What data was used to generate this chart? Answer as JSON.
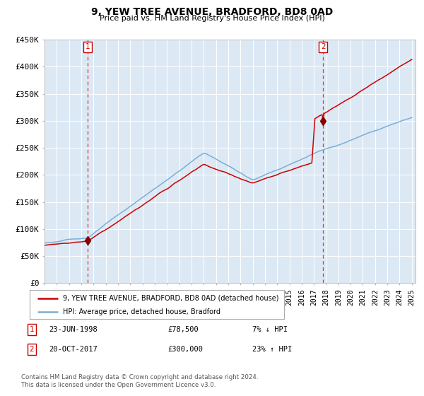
{
  "title": "9, YEW TREE AVENUE, BRADFORD, BD8 0AD",
  "subtitle": "Price paid vs. HM Land Registry's House Price Index (HPI)",
  "bg_color": "#dce9f5",
  "fig_bg_color": "#ffffff",
  "red_line_label": "9, YEW TREE AVENUE, BRADFORD, BD8 0AD (detached house)",
  "blue_line_label": "HPI: Average price, detached house, Bradford",
  "sale1_date": "23-JUN-1998",
  "sale1_price": 78500,
  "sale1_hpi": "7% ↓ HPI",
  "sale2_date": "20-OCT-2017",
  "sale2_price": 300000,
  "sale2_hpi": "23% ↑ HPI",
  "ytick_labels": [
    "£0",
    "£50K",
    "£100K",
    "£150K",
    "£200K",
    "£250K",
    "£300K",
    "£350K",
    "£400K",
    "£450K"
  ],
  "yticks": [
    0,
    50000,
    100000,
    150000,
    200000,
    250000,
    300000,
    350000,
    400000,
    450000
  ],
  "footer": "Contains HM Land Registry data © Crown copyright and database right 2024.\nThis data is licensed under the Open Government Licence v3.0.",
  "sale1_year": 1998.47,
  "sale2_year": 2017.79,
  "red_line_color": "#cc0000",
  "blue_line_color": "#7bafd4",
  "marker_color": "#880000",
  "title_fontsize": 10,
  "subtitle_fontsize": 8,
  "tick_fontsize": 8
}
